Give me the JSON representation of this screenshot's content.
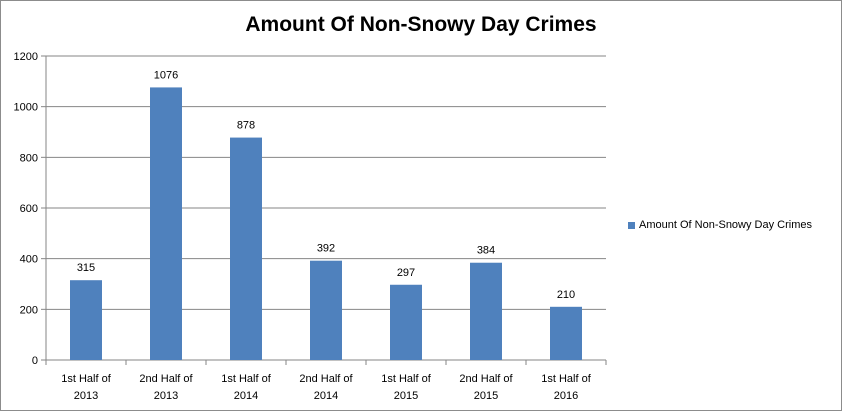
{
  "chart_data": {
    "type": "bar",
    "title": "Amount Of Non-Snowy Day Crimes",
    "categories": [
      [
        "1st Half of",
        "2013"
      ],
      [
        "2nd Half of",
        "2013"
      ],
      [
        "1st Half of",
        "2014"
      ],
      [
        "2nd Half of",
        "2014"
      ],
      [
        "1st Half of",
        "2015"
      ],
      [
        "2nd Half of",
        "2015"
      ],
      [
        "1st Half of",
        "2016"
      ]
    ],
    "series": [
      {
        "name": "Amount Of Non-Snowy Day Crimes",
        "values": [
          315,
          1076,
          878,
          392,
          297,
          384,
          210
        ],
        "color": "#4f81bd"
      }
    ],
    "ylim": [
      0,
      1200
    ],
    "yticks": [
      0,
      200,
      400,
      600,
      800,
      1000,
      1200
    ],
    "grid": true,
    "legend_position": "right",
    "data_labels": true
  }
}
